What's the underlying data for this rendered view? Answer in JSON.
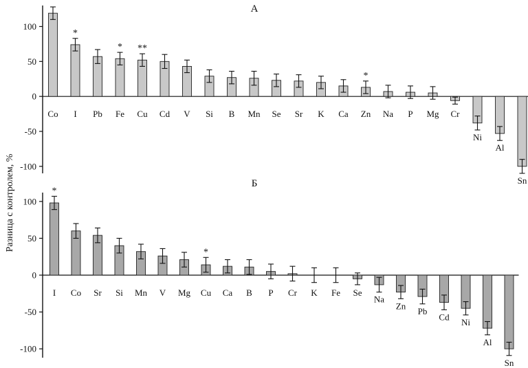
{
  "ylabel": "Разница с контролем, %",
  "chart_data": [
    {
      "type": "bar",
      "title": "А",
      "ylim": [
        -110,
        130
      ],
      "yticks": [
        -100,
        -50,
        0,
        50,
        100
      ],
      "bar_color": "#c8c8c8",
      "categories": [
        "Co",
        "I",
        "Pb",
        "Fe",
        "Cu",
        "Cd",
        "V",
        "Si",
        "B",
        "Mn",
        "Se",
        "Sr",
        "K",
        "Ca",
        "Zn",
        "Na",
        "P",
        "Mg",
        "Cr",
        "Ni",
        "Al",
        "Sn"
      ],
      "values": [
        119,
        74,
        57,
        54,
        52,
        50,
        43,
        29,
        27,
        26,
        23,
        22,
        20,
        15,
        13,
        7,
        6,
        5,
        -6,
        -38,
        -53,
        -100
      ],
      "errors": [
        9,
        9,
        10,
        9,
        9,
        10,
        9,
        9,
        9,
        10,
        9,
        9,
        9,
        9,
        9,
        9,
        9,
        9,
        5,
        10,
        10,
        10
      ],
      "annotations": [
        "",
        "*",
        "",
        "*",
        "**",
        "",
        "",
        "",
        "",
        "",
        "",
        "",
        "",
        "",
        "*",
        "",
        "",
        "",
        "",
        "",
        "",
        ""
      ]
    },
    {
      "type": "bar",
      "title": "Б",
      "ylim": [
        -112,
        112
      ],
      "yticks": [
        -100,
        -50,
        0,
        50,
        100
      ],
      "bar_color": "#a8a8a8",
      "categories": [
        "I",
        "Co",
        "Sr",
        "Si",
        "Mn",
        "V",
        "Mg",
        "Cu",
        "Ca",
        "B",
        "P",
        "Cr",
        "K",
        "Fe",
        "Se",
        "Na",
        "Zn",
        "Pb",
        "Cd",
        "Ni",
        "Al",
        "Sn"
      ],
      "values": [
        98,
        60,
        54,
        40,
        32,
        26,
        21,
        14,
        12,
        11,
        5,
        2,
        0,
        0,
        -5,
        -13,
        -23,
        -29,
        -37,
        -45,
        -72,
        -100
      ],
      "errors": [
        9,
        10,
        10,
        10,
        10,
        10,
        10,
        10,
        9,
        10,
        10,
        10,
        10,
        10,
        8,
        10,
        9,
        10,
        10,
        9,
        9,
        9
      ],
      "annotations": [
        "*",
        "",
        "",
        "",
        "",
        "",
        "",
        "*",
        "",
        "",
        "",
        "",
        "",
        "",
        "",
        "",
        "",
        "",
        "",
        "",
        "",
        ""
      ]
    }
  ]
}
